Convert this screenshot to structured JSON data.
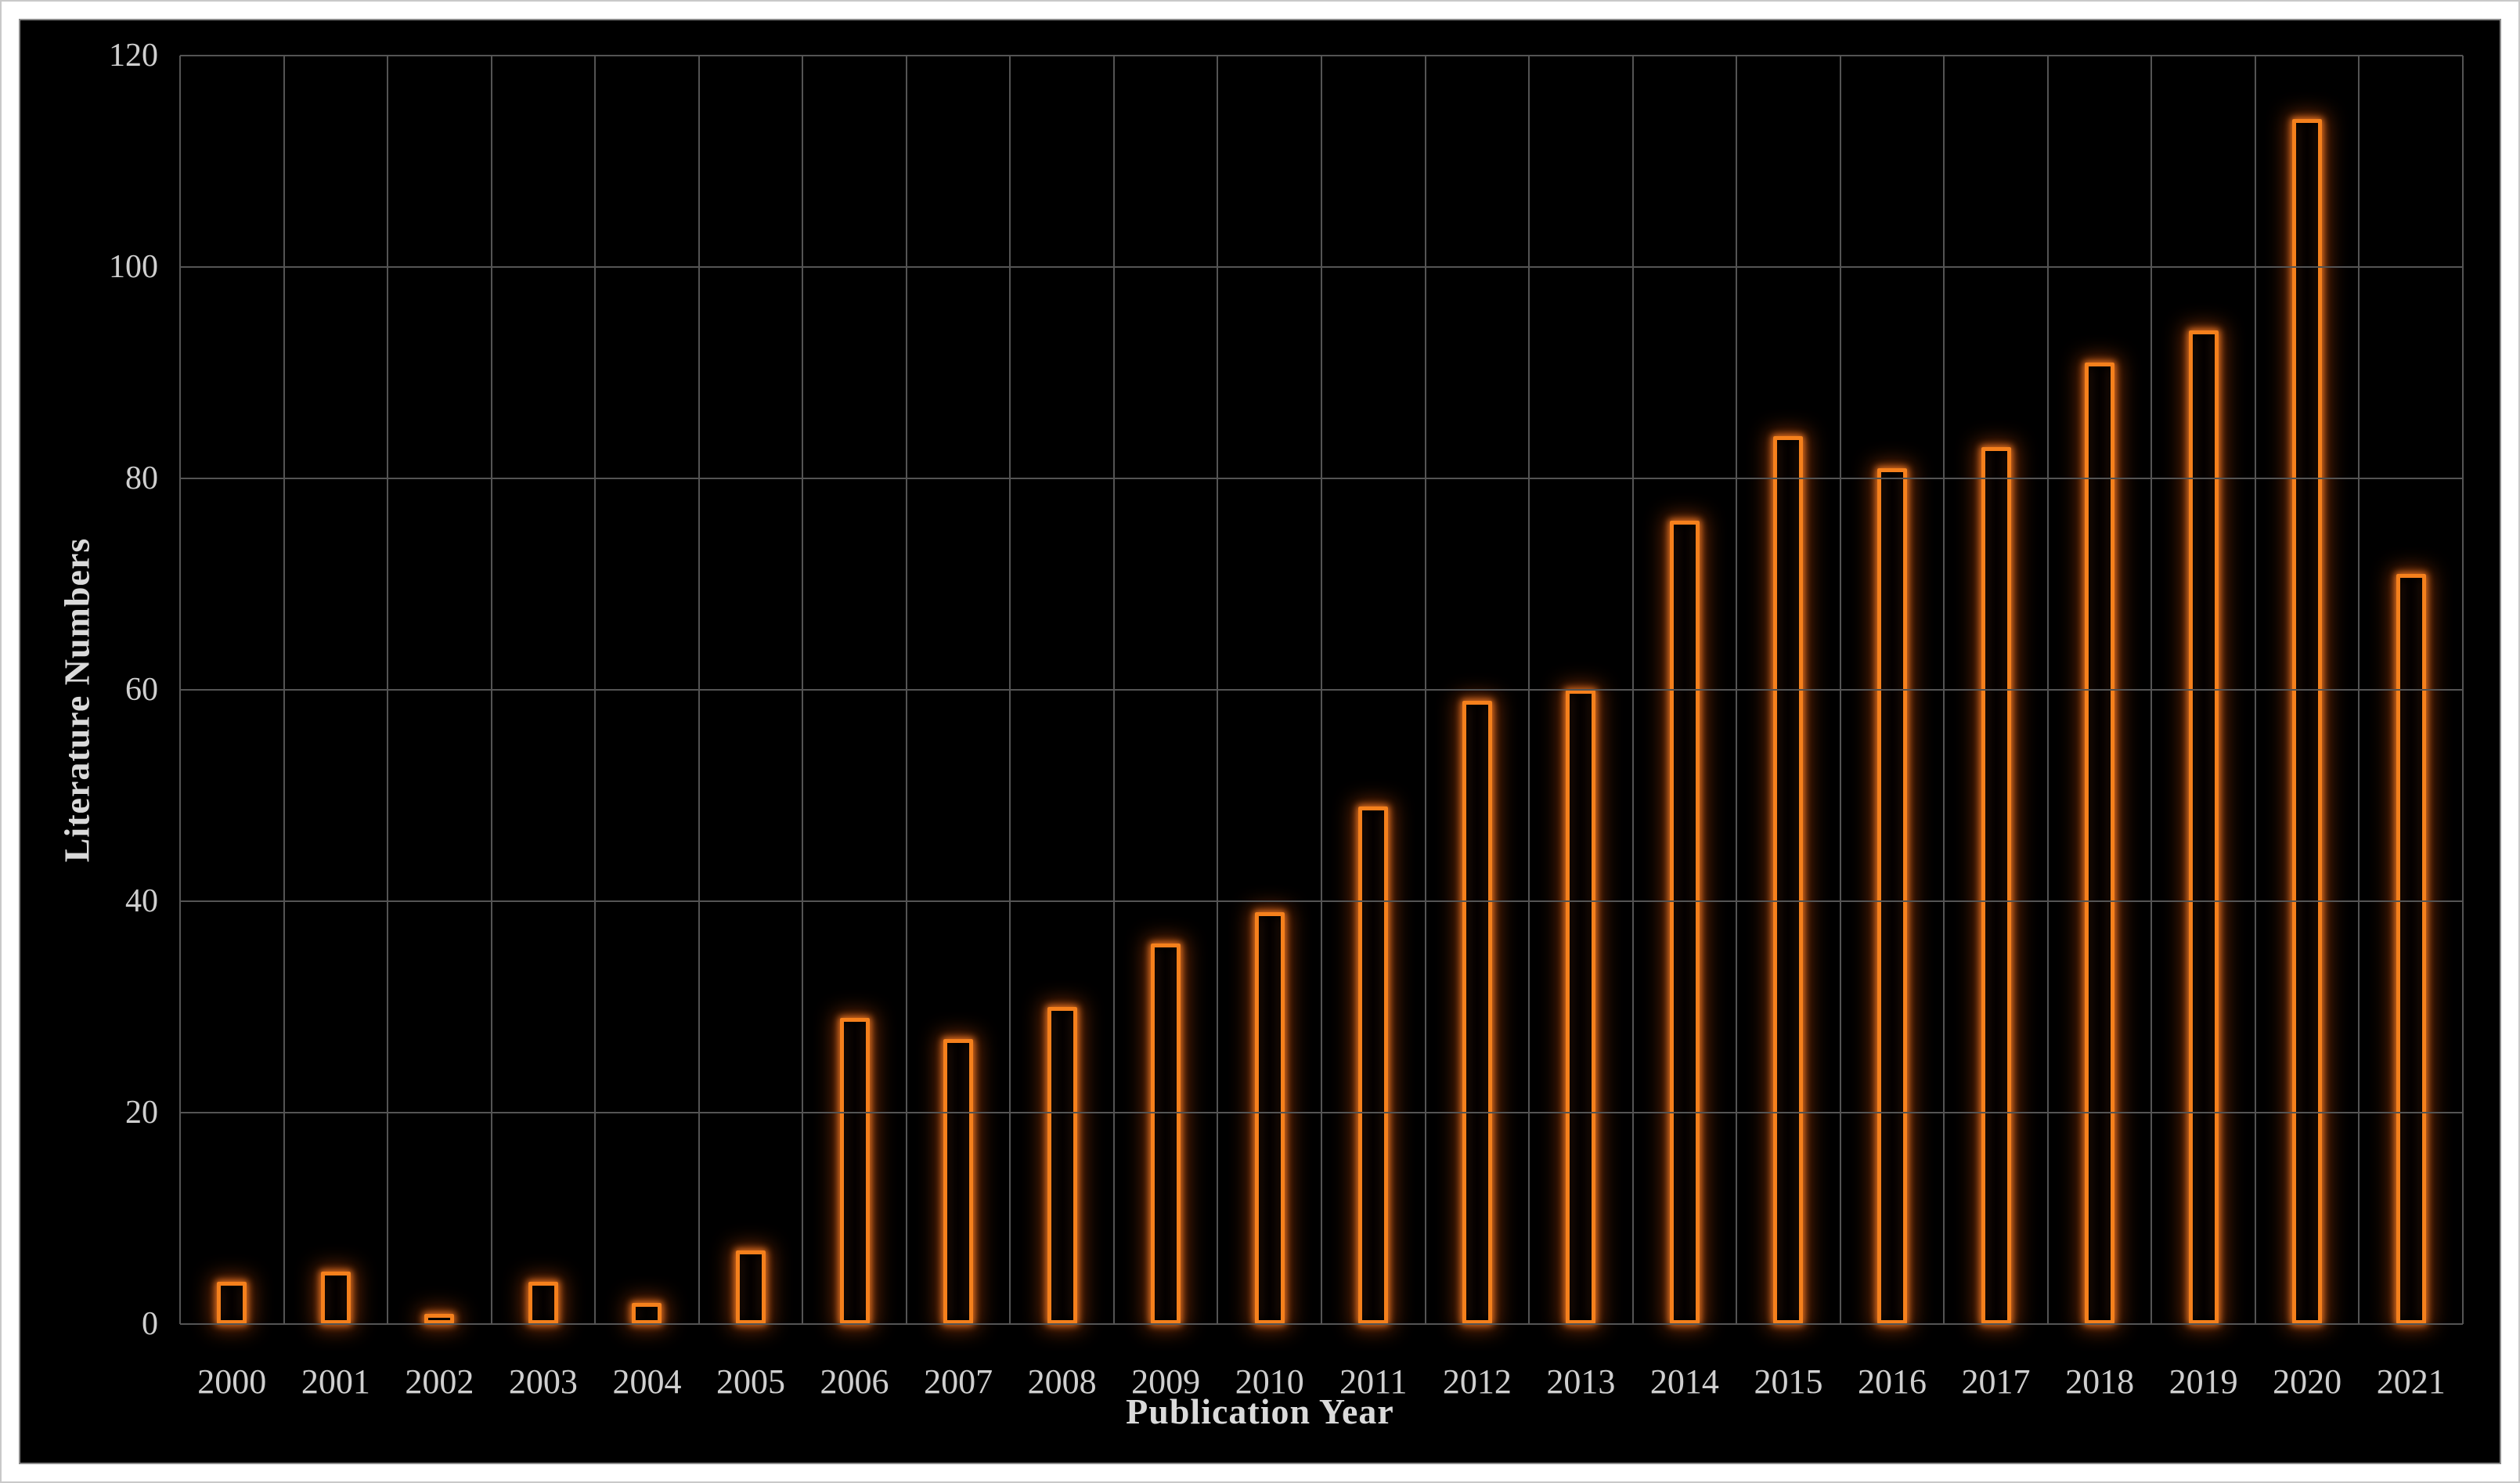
{
  "chart_data": {
    "type": "bar",
    "title": "",
    "xlabel": "Publication Year",
    "ylabel": "Literature Numbers",
    "categories": [
      "2000",
      "2001",
      "2002",
      "2003",
      "2004",
      "2005",
      "2006",
      "2007",
      "2008",
      "2009",
      "2010",
      "2011",
      "2012",
      "2013",
      "2014",
      "2015",
      "2016",
      "2017",
      "2018",
      "2019",
      "2020",
      "2021"
    ],
    "values": [
      4,
      5,
      1,
      4,
      2,
      7,
      29,
      27,
      30,
      36,
      39,
      49,
      59,
      60,
      76,
      84,
      81,
      83,
      91,
      94,
      114,
      71
    ],
    "ylim": [
      0,
      120
    ],
    "yticks": [
      0,
      20,
      40,
      60,
      80,
      100,
      120
    ],
    "grid": true,
    "legend": "none",
    "plot_background": "#000000",
    "frame_color": "#ffffff",
    "gridline_color": "#545454",
    "bar_outline_color": "#f5801c",
    "bar_glow_color": "#d2500f",
    "bar_fill_color": "#0b0402",
    "label_color": "#cfcfcf",
    "title_color": "#dadada"
  }
}
